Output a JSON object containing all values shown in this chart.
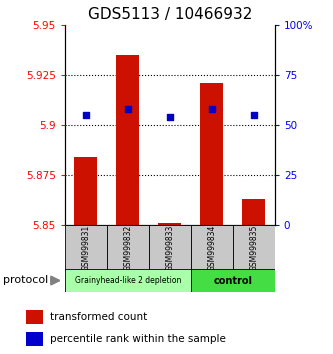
{
  "title": "GDS5113 / 10466932",
  "samples": [
    "GSM999831",
    "GSM999832",
    "GSM999833",
    "GSM999834",
    "GSM999835"
  ],
  "transformed_count": [
    5.884,
    5.935,
    5.851,
    5.921,
    5.863
  ],
  "percentile_rank": [
    55,
    58,
    54,
    58,
    55
  ],
  "ylim_left": [
    5.85,
    5.95
  ],
  "ylim_right": [
    0,
    100
  ],
  "yticks_left": [
    5.85,
    5.875,
    5.9,
    5.925,
    5.95
  ],
  "yticks_right": [
    0,
    25,
    50,
    75,
    100
  ],
  "ytick_labels_right": [
    "0",
    "25",
    "50",
    "75",
    "100%"
  ],
  "group1_samples": [
    0,
    1,
    2
  ],
  "group2_samples": [
    3,
    4
  ],
  "group1_label": "Grainyhead-like 2 depletion",
  "group2_label": "control",
  "group1_color": "#aaffaa",
  "group2_color": "#44dd44",
  "bar_color": "#cc1100",
  "marker_color": "#0000cc",
  "bar_bottom": 5.85,
  "bar_width": 0.55,
  "protocol_label": "protocol",
  "legend1": "transformed count",
  "legend2": "percentile rank within the sample",
  "sample_box_color": "#c8c8c8",
  "title_fontsize": 11,
  "tick_fontsize": 7.5
}
